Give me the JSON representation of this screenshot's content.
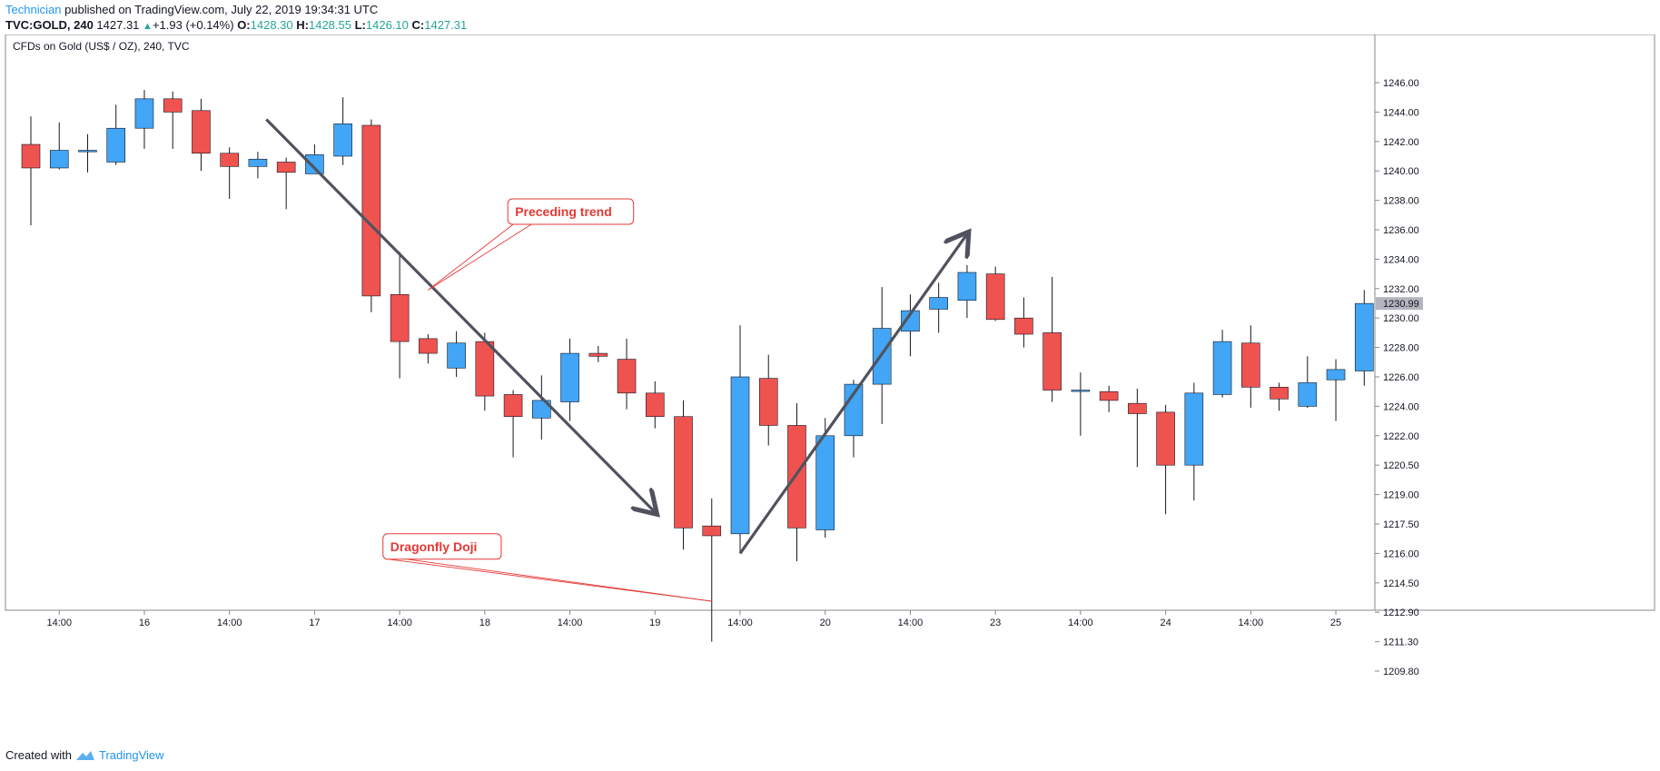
{
  "header": {
    "author": "Technician",
    "published_text": "published on TradingView.com, July 22, 2019 19:34:31 UTC",
    "symbol": "TVC:GOLD, 240",
    "last": "1427.31",
    "arrow": "▲",
    "change": "+1.93 (+0.14%)",
    "o_label": "O:",
    "o_value": "1428.30",
    "h_label": "H:",
    "h_value": "1428.55",
    "l_label": "L:",
    "l_value": "1426.10",
    "c_label": "C:",
    "c_value": "1427.31"
  },
  "footer": {
    "created_with": "Created with",
    "brand": "TradingView",
    "logo_icon": "tradingview-cloud-icon"
  },
  "colors": {
    "up": "#42a5f5",
    "down": "#ef5350",
    "annotation": "#e53935",
    "arrow": "#50535e",
    "axis": "#131722",
    "border": "#d1d4dc",
    "price_tag": "#b2b5be"
  },
  "chart_data": {
    "type": "candlestick",
    "title": "CFDs on Gold (US$ / OZ), 240, TVC",
    "y_ticks": [
      "1246.00",
      "1244.00",
      "1242.00",
      "1240.00",
      "1238.00",
      "1236.00",
      "1234.00",
      "1232.00",
      "1230.00",
      "1228.00",
      "1226.00",
      "1224.00",
      "1222.00",
      "1220.50",
      "1219.00",
      "1217.50",
      "1216.00",
      "1214.50",
      "1212.90",
      "1211.30",
      "1209.80"
    ],
    "x_ticks": [
      {
        "label": "14:00",
        "index": 1
      },
      {
        "label": "16",
        "index": 4
      },
      {
        "label": "14:00",
        "index": 7
      },
      {
        "label": "17",
        "index": 10
      },
      {
        "label": "14:00",
        "index": 13
      },
      {
        "label": "18",
        "index": 16
      },
      {
        "label": "14:00",
        "index": 19
      },
      {
        "label": "19",
        "index": 22
      },
      {
        "label": "14:00",
        "index": 25
      },
      {
        "label": "20",
        "index": 28
      },
      {
        "label": "14:00",
        "index": 31
      },
      {
        "label": "23",
        "index": 34
      },
      {
        "label": "14:00",
        "index": 37
      },
      {
        "label": "24",
        "index": 40
      },
      {
        "label": "14:00",
        "index": 43
      },
      {
        "label": "25",
        "index": 46
      }
    ],
    "current_price": "1230.99",
    "current_price_value": 1230.99,
    "candles": [
      {
        "o": 1241.8,
        "h": 1243.7,
        "l": 1236.3,
        "c": 1240.2
      },
      {
        "o": 1240.2,
        "h": 1243.3,
        "l": 1240.1,
        "c": 1241.4
      },
      {
        "o": 1241.3,
        "h": 1242.5,
        "l": 1239.9,
        "c": 1241.4
      },
      {
        "o": 1240.6,
        "h": 1244.5,
        "l": 1240.4,
        "c": 1242.9
      },
      {
        "o": 1242.9,
        "h": 1245.5,
        "l": 1241.5,
        "c": 1244.9
      },
      {
        "o": 1244.9,
        "h": 1245.4,
        "l": 1241.5,
        "c": 1244.0
      },
      {
        "o": 1244.1,
        "h": 1244.9,
        "l": 1240.0,
        "c": 1241.2
      },
      {
        "o": 1241.2,
        "h": 1241.6,
        "l": 1238.1,
        "c": 1240.3
      },
      {
        "o": 1240.3,
        "h": 1241.3,
        "l": 1239.5,
        "c": 1240.8
      },
      {
        "o": 1240.6,
        "h": 1240.9,
        "l": 1237.4,
        "c": 1239.9
      },
      {
        "o": 1239.8,
        "h": 1241.8,
        "l": 1239.8,
        "c": 1241.1
      },
      {
        "o": 1241.0,
        "h": 1245.0,
        "l": 1240.4,
        "c": 1243.2
      },
      {
        "o": 1243.1,
        "h": 1243.5,
        "l": 1230.4,
        "c": 1231.5
      },
      {
        "o": 1231.6,
        "h": 1234.5,
        "l": 1225.9,
        "c": 1228.4
      },
      {
        "o": 1228.6,
        "h": 1228.9,
        "l": 1226.9,
        "c": 1227.6
      },
      {
        "o": 1226.6,
        "h": 1229.1,
        "l": 1226.0,
        "c": 1228.3
      },
      {
        "o": 1228.4,
        "h": 1229.0,
        "l": 1223.7,
        "c": 1224.7
      },
      {
        "o": 1224.8,
        "h": 1225.1,
        "l": 1220.9,
        "c": 1223.3
      },
      {
        "o": 1223.2,
        "h": 1226.1,
        "l": 1221.8,
        "c": 1224.4
      },
      {
        "o": 1224.3,
        "h": 1228.6,
        "l": 1223.0,
        "c": 1227.6
      },
      {
        "o": 1227.6,
        "h": 1228.1,
        "l": 1227.0,
        "c": 1227.4
      },
      {
        "o": 1227.2,
        "h": 1228.6,
        "l": 1223.8,
        "c": 1224.9
      },
      {
        "o": 1224.9,
        "h": 1225.7,
        "l": 1222.5,
        "c": 1223.3
      },
      {
        "o": 1223.3,
        "h": 1224.4,
        "l": 1216.2,
        "c": 1217.3
      },
      {
        "o": 1217.4,
        "h": 1218.8,
        "l": 1211.3,
        "c": 1216.9
      },
      {
        "o": 1217.0,
        "h": 1229.5,
        "l": 1216.0,
        "c": 1226.0
      },
      {
        "o": 1225.9,
        "h": 1227.5,
        "l": 1221.5,
        "c": 1222.7
      },
      {
        "o": 1222.7,
        "h": 1224.2,
        "l": 1215.6,
        "c": 1217.3
      },
      {
        "o": 1217.2,
        "h": 1223.2,
        "l": 1216.8,
        "c": 1222.0
      },
      {
        "o": 1222.0,
        "h": 1225.8,
        "l": 1220.9,
        "c": 1225.5
      },
      {
        "o": 1225.5,
        "h": 1232.1,
        "l": 1222.8,
        "c": 1229.3
      },
      {
        "o": 1229.1,
        "h": 1231.6,
        "l": 1227.4,
        "c": 1230.5
      },
      {
        "o": 1230.6,
        "h": 1232.4,
        "l": 1229.0,
        "c": 1231.4
      },
      {
        "o": 1231.2,
        "h": 1233.6,
        "l": 1230.0,
        "c": 1233.1
      },
      {
        "o": 1233.0,
        "h": 1233.5,
        "l": 1229.8,
        "c": 1229.9
      },
      {
        "o": 1230.0,
        "h": 1231.4,
        "l": 1228.0,
        "c": 1228.9
      },
      {
        "o": 1229.0,
        "h": 1232.8,
        "l": 1224.3,
        "c": 1225.1
      },
      {
        "o": 1225.1,
        "h": 1226.3,
        "l": 1222.0,
        "c": 1225.1
      },
      {
        "o": 1225.0,
        "h": 1225.4,
        "l": 1223.6,
        "c": 1224.4
      },
      {
        "o": 1224.2,
        "h": 1225.2,
        "l": 1220.4,
        "c": 1223.5
      },
      {
        "o": 1223.6,
        "h": 1224.1,
        "l": 1218.0,
        "c": 1220.5
      },
      {
        "o": 1220.5,
        "h": 1225.6,
        "l": 1218.7,
        "c": 1224.9
      },
      {
        "o": 1224.8,
        "h": 1229.2,
        "l": 1224.6,
        "c": 1228.4
      },
      {
        "o": 1228.3,
        "h": 1229.5,
        "l": 1223.9,
        "c": 1225.3
      },
      {
        "o": 1225.3,
        "h": 1225.6,
        "l": 1223.7,
        "c": 1224.5
      },
      {
        "o": 1224.0,
        "h": 1227.4,
        "l": 1223.9,
        "c": 1225.6
      },
      {
        "o": 1225.8,
        "h": 1227.2,
        "l": 1223.0,
        "c": 1226.5
      },
      {
        "o": 1226.4,
        "h": 1231.9,
        "l": 1225.4,
        "c": 1230.99
      }
    ],
    "annotations": [
      {
        "text": "Preceding trend",
        "box_index": 17.1,
        "box_price": 1238.1,
        "target_index": 14.0,
        "target_price": 1231.9
      },
      {
        "text": "Dragonfly Doji",
        "box_index": 12.7,
        "box_price": 1217.0,
        "target_index": 24.0,
        "target_price": 1213.5
      }
    ],
    "arrows": [
      {
        "name": "downtrend-arrow",
        "from_index": 8.3,
        "from_price": 1243.5,
        "to_index": 22.0,
        "to_price": 1218.1
      },
      {
        "name": "uptrend-arrow",
        "from_index": 25.0,
        "from_price": 1216.0,
        "to_index": 33.0,
        "to_price": 1235.7
      }
    ]
  }
}
